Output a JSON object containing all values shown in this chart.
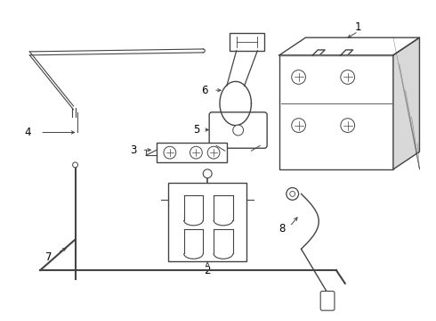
{
  "bg_color": "#ffffff",
  "lc": "#444444",
  "lw": 1.0,
  "label_fs": 8.5
}
